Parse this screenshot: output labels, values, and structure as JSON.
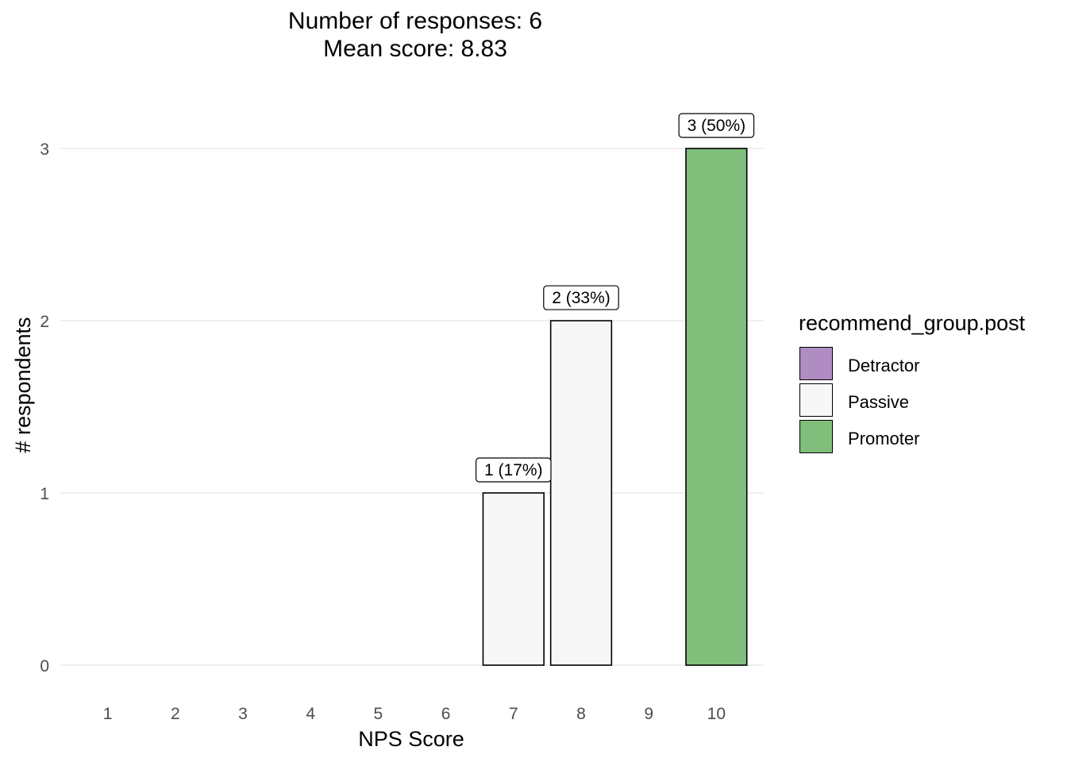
{
  "chart_data": {
    "type": "bar",
    "title_lines": [
      "Number of responses: 6",
      "Mean score: 8.83"
    ],
    "xlabel": "NPS Score",
    "ylabel": "# respondents",
    "categories": [
      "1",
      "2",
      "3",
      "4",
      "5",
      "6",
      "7",
      "8",
      "9",
      "10"
    ],
    "values": [
      0,
      0,
      0,
      0,
      0,
      0,
      1,
      2,
      0,
      3
    ],
    "groups": [
      "",
      "",
      "",
      "",
      "",
      "",
      "Passive",
      "Passive",
      "",
      "Promoter"
    ],
    "bar_labels": [
      "",
      "",
      "",
      "",
      "",
      "",
      "1 (17%)",
      "2 (33%)",
      "",
      "3 (50%)"
    ],
    "y_ticks": [
      0,
      1,
      2,
      3
    ],
    "ylim": [
      0,
      3.3
    ],
    "grid": true,
    "legend": {
      "title": "recommend_group.post",
      "position": "right",
      "entries": [
        {
          "name": "Detractor",
          "color": "#af8dc3"
        },
        {
          "name": "Passive",
          "color": "#f7f7f7"
        },
        {
          "name": "Promoter",
          "color": "#7fbf7b"
        }
      ]
    }
  }
}
